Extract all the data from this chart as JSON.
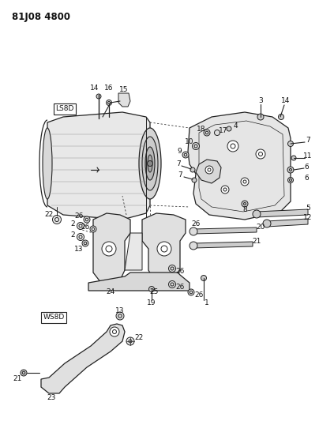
{
  "title": "81J08 4800",
  "bg_color": "#ffffff",
  "line_color": "#222222",
  "label_color": "#111111",
  "title_fontsize": 9,
  "label_fontsize": 6.5,
  "fig_width": 4.04,
  "fig_height": 5.33,
  "dpi": 100
}
